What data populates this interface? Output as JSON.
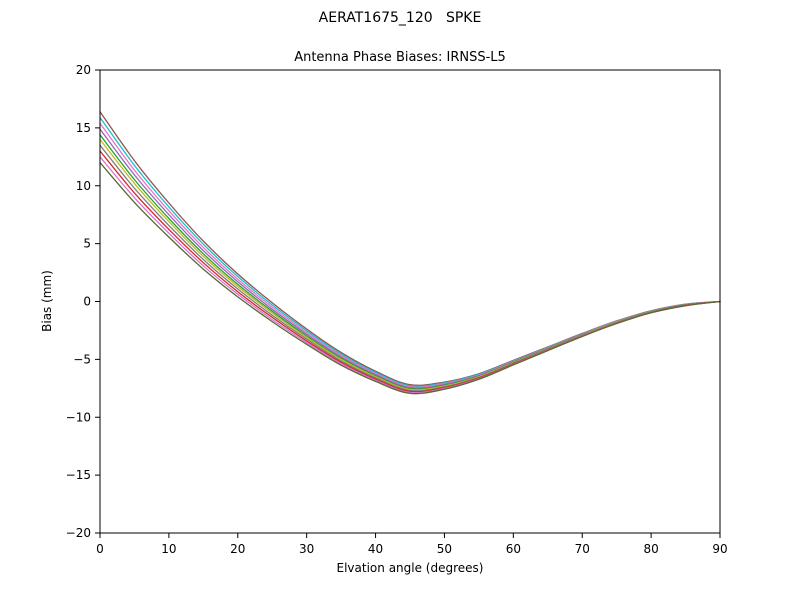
{
  "figure": {
    "title": "AERAT1675_120   SPKE",
    "subtitle": "Antenna Phase Biases: IRNSS-L5"
  },
  "chart_data": {
    "type": "line",
    "title": "AERAT1675_120   SPKE",
    "subtitle": "Antenna Phase Biases: IRNSS-L5",
    "xlabel": "Elvation angle (degrees)",
    "ylabel": "Bias (mm)",
    "xlim": [
      0,
      90
    ],
    "ylim": [
      -20,
      20
    ],
    "xticks": [
      0,
      10,
      20,
      30,
      40,
      50,
      60,
      70,
      80,
      90
    ],
    "yticks": [
      -20,
      -15,
      -10,
      -5,
      0,
      5,
      10,
      15,
      20
    ],
    "grid": false,
    "legend": "none",
    "x": [
      0,
      5,
      10,
      15,
      20,
      25,
      30,
      35,
      40,
      45,
      50,
      55,
      60,
      65,
      70,
      75,
      80,
      85,
      90
    ],
    "series": [
      {
        "name": "curve-01",
        "color": "#8c564b",
        "values": [
          16.4,
          12.17,
          8.51,
          5.22,
          2.38,
          -0.11,
          -2.38,
          -4.4,
          -6.02,
          -7.19,
          -6.96,
          -6.24,
          -5.08,
          -3.93,
          -2.76,
          -1.68,
          -0.8,
          -0.23,
          0
        ]
      },
      {
        "name": "curve-02",
        "color": "#17becf",
        "values": [
          15.9,
          11.76,
          8.17,
          4.95,
          2.16,
          -0.3,
          -2.53,
          -4.53,
          -6.12,
          -7.28,
          -7.03,
          -6.29,
          -5.13,
          -3.97,
          -2.79,
          -1.71,
          -0.82,
          -0.24,
          0
        ]
      },
      {
        "name": "curve-03",
        "color": "#e377c2",
        "values": [
          15.4,
          11.35,
          7.84,
          4.67,
          1.93,
          -0.48,
          -2.68,
          -4.65,
          -6.22,
          -7.36,
          -7.1,
          -6.35,
          -5.17,
          -4.0,
          -2.82,
          -1.73,
          -0.84,
          -0.26,
          0
        ]
      },
      {
        "name": "curve-04",
        "color": "#9467bd",
        "values": [
          14.9,
          10.94,
          7.5,
          4.4,
          1.71,
          -0.67,
          -2.83,
          -4.78,
          -6.32,
          -7.45,
          -7.17,
          -6.4,
          -5.22,
          -4.04,
          -2.85,
          -1.76,
          -0.86,
          -0.27,
          0
        ]
      },
      {
        "name": "curve-05",
        "color": "#2ca02c",
        "values": [
          14.4,
          10.53,
          7.17,
          4.12,
          1.48,
          -0.85,
          -2.98,
          -4.9,
          -6.42,
          -7.53,
          -7.24,
          -6.46,
          -5.26,
          -4.07,
          -2.88,
          -1.78,
          -0.88,
          -0.29,
          0
        ]
      },
      {
        "name": "curve-06",
        "color": "#bcbd22",
        "values": [
          14.0,
          10.2,
          6.9,
          3.9,
          1.3,
          -1.0,
          -3.1,
          -5.0,
          -6.5,
          -7.6,
          -7.3,
          -6.5,
          -5.3,
          -4.1,
          -2.9,
          -1.8,
          -0.9,
          -0.3,
          0
        ]
      },
      {
        "name": "curve-07",
        "color": "#7f7f7f",
        "values": [
          13.5,
          9.79,
          6.57,
          3.63,
          1.08,
          -1.19,
          -3.25,
          -5.13,
          -6.6,
          -7.69,
          -7.37,
          -6.56,
          -5.35,
          -4.14,
          -2.93,
          -1.83,
          -0.92,
          -0.32,
          0
        ]
      },
      {
        "name": "curve-08",
        "color": "#d62728",
        "values": [
          13.0,
          9.38,
          6.23,
          3.35,
          0.85,
          -1.37,
          -3.4,
          -5.25,
          -6.7,
          -7.77,
          -7.44,
          -6.61,
          -5.39,
          -4.17,
          -2.96,
          -1.85,
          -0.94,
          -0.33,
          0
        ]
      },
      {
        "name": "curve-09",
        "color": "#da70d6",
        "values": [
          12.5,
          8.97,
          5.9,
          3.08,
          0.63,
          -1.56,
          -3.55,
          -5.38,
          -6.8,
          -7.86,
          -7.51,
          -6.67,
          -5.44,
          -4.21,
          -2.99,
          -1.88,
          -0.96,
          -0.35,
          0
        ]
      },
      {
        "name": "curve-10",
        "color": "#556b2f",
        "values": [
          12.0,
          8.56,
          5.56,
          2.8,
          0.4,
          -1.74,
          -3.7,
          -5.5,
          -6.9,
          -7.94,
          -7.58,
          -6.72,
          -5.48,
          -4.24,
          -3.02,
          -1.9,
          -0.98,
          -0.36,
          0
        ]
      }
    ]
  }
}
